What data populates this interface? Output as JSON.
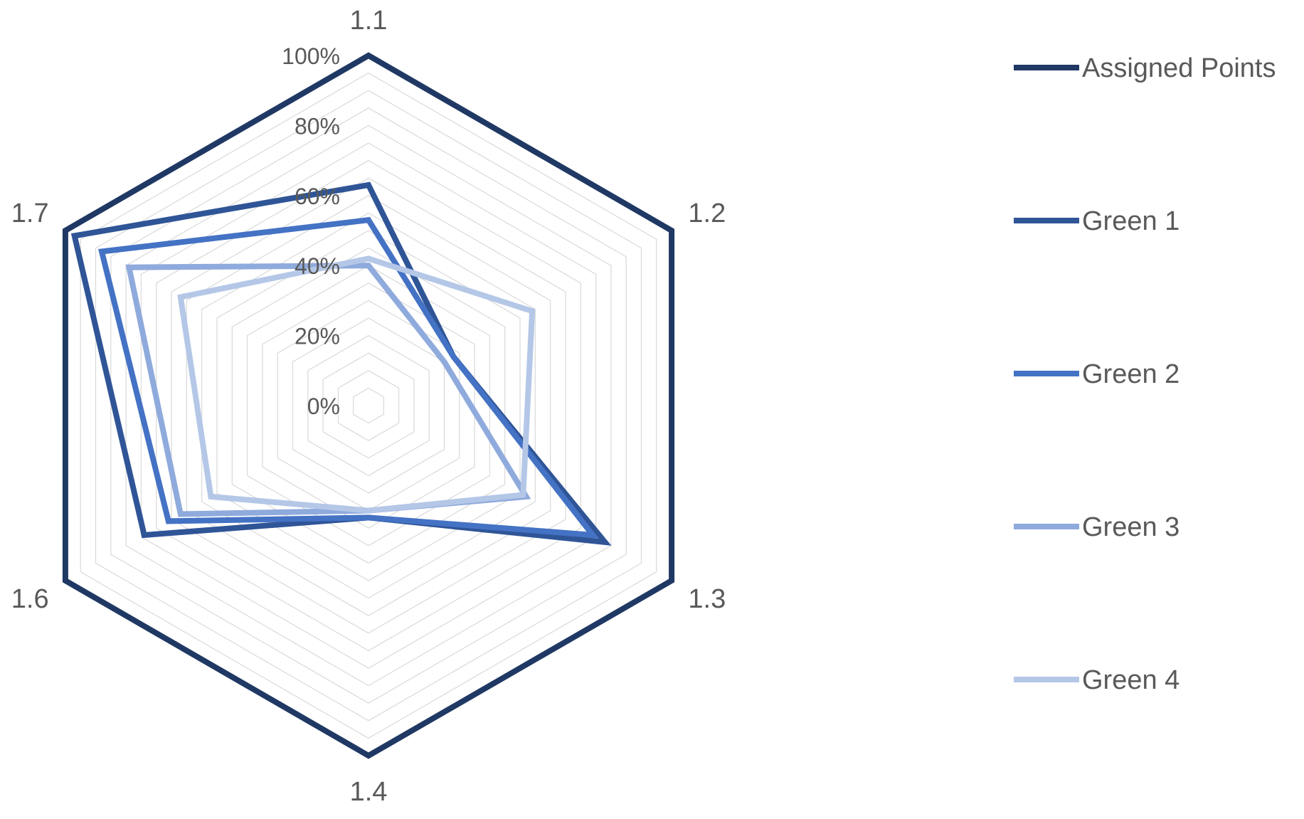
{
  "chart_data": {
    "type": "radar",
    "categories": [
      "1.1",
      "1.2",
      "1.3",
      "1.4",
      "1.6",
      "1.7"
    ],
    "rlim": [
      0,
      100
    ],
    "ticks": [
      "0%",
      "20%",
      "40%",
      "60%",
      "80%",
      "100%"
    ],
    "tick_values": [
      0,
      20,
      40,
      60,
      80,
      100
    ],
    "minor_gridlines_every": 4,
    "legend_position": "right",
    "series": [
      {
        "name": "Assigned Points",
        "color": "#1F3864",
        "values": [
          100,
          100,
          100,
          100,
          100,
          100
        ]
      },
      {
        "name": "Green 1",
        "color": "#2F5597",
        "values": [
          63,
          28,
          78,
          32,
          74,
          97
        ]
      },
      {
        "name": "Green 2",
        "color": "#4472C4",
        "values": [
          53,
          28,
          74,
          32,
          66,
          88
        ]
      },
      {
        "name": "Green 3",
        "color": "#8FAADC",
        "values": [
          40,
          25,
          52,
          30,
          62,
          79
        ]
      },
      {
        "name": "Green 4",
        "color": "#B4C7E7",
        "values": [
          42,
          54,
          51,
          30,
          52,
          62
        ]
      }
    ]
  }
}
